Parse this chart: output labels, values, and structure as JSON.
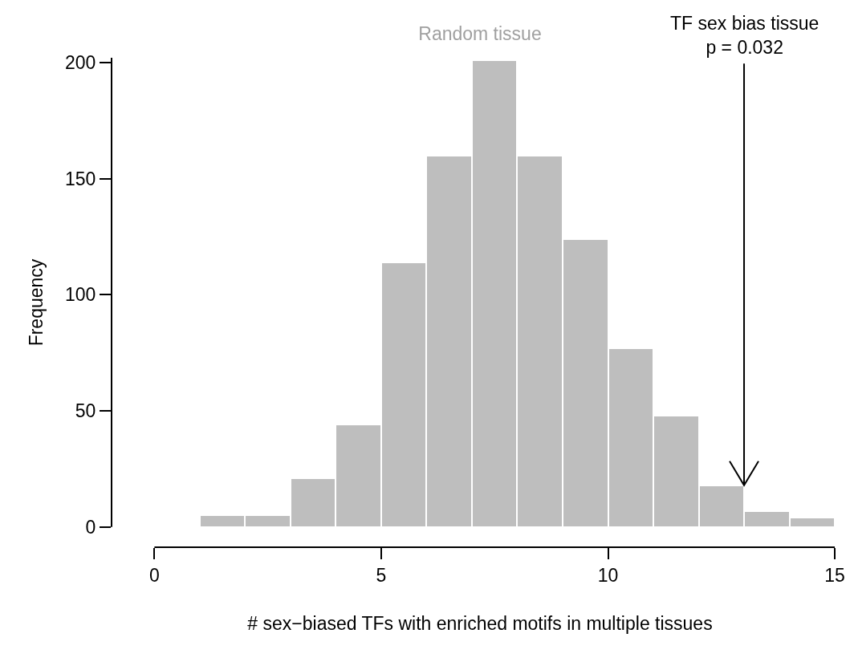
{
  "chart_data": {
    "type": "histogram",
    "title": "Random tissue",
    "xlabel": "# sex−biased TFs with enriched motifs in multiple tissues",
    "ylabel": "Frequency",
    "bins": [
      1,
      2,
      3,
      4,
      5,
      6,
      7,
      8,
      9,
      10,
      11,
      12,
      13,
      14,
      15
    ],
    "values": [
      5,
      5,
      21,
      44,
      114,
      160,
      201,
      160,
      124,
      77,
      48,
      18,
      7,
      4
    ],
    "color": "#bebebe",
    "xlim": [
      0,
      15
    ],
    "xticks": [
      0,
      5,
      10,
      15
    ],
    "ylim": [
      0,
      202
    ],
    "yticks": [
      0,
      50,
      100,
      150,
      200
    ],
    "annotations": [
      {
        "text": "TF sex bias tissue\np = 0.032",
        "x": 13,
        "y": 18
      }
    ]
  }
}
